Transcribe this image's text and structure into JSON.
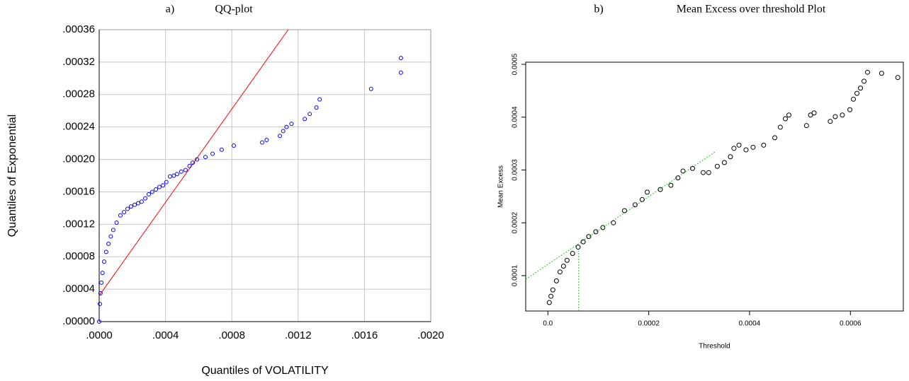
{
  "chart_data": [
    {
      "type": "scatter",
      "panel": "a)",
      "title": "QQ-plot",
      "xlabel": "Quantiles of VOLATILITY",
      "ylabel": "Quantiles of Exponential",
      "x": [
        0,
        4.3e-06,
        8e-06,
        1.3e-05,
        2e-05,
        3e-05,
        4.2e-05,
        5.6e-05,
        7e-05,
        8.5e-05,
        0.000105,
        0.000128,
        0.00015,
        0.000171,
        0.000192,
        0.000214,
        0.000235,
        0.000256,
        0.000278,
        0.000299,
        0.00032,
        0.000342,
        0.000363,
        0.000385,
        0.000405,
        0.000427,
        0.00045,
        0.00047,
        0.000495,
        0.000521,
        0.000545,
        0.000564,
        0.00059,
        0.000641,
        0.000684,
        0.000739,
        0.000812,
        0.000983,
        0.00101,
        0.00109,
        0.00111,
        0.00113,
        0.00116,
        0.00124,
        0.00127,
        0.00131,
        0.00133,
        0.00164,
        0.00182,
        0.00182
      ],
      "y": [
        0,
        2.18e-05,
        3.5e-05,
        4.8e-05,
        6e-05,
        7.4e-05,
        8.6e-05,
        9.6e-05,
        0.000105,
        0.000113,
        0.000122,
        0.000131,
        0.000135,
        0.000139,
        0.000142,
        0.000144,
        0.000146,
        0.000148,
        0.000152,
        0.000157,
        0.00016,
        0.000163,
        0.000166,
        0.000168,
        0.000172,
        0.000179,
        0.00018,
        0.000182,
        0.000185,
        0.000187,
        0.000192,
        0.000196,
        0.0002,
        0.000203,
        0.000207,
        0.000212,
        0.000217,
        0.000221,
        0.000224,
        0.000229,
        0.000235,
        0.00024,
        0.000244,
        0.00025,
        0.000256,
        0.000264,
        0.000274,
        0.000287,
        0.000307,
        0.000325
      ],
      "color": "#0000ff",
      "xlim": [
        0,
        0.002
      ],
      "xticks": [
        {
          "value": 0,
          "label": ".0000"
        },
        {
          "value": 0.0004,
          "label": ".0004"
        },
        {
          "value": 0.0008,
          "label": ".0008"
        },
        {
          "value": 0.0012,
          "label": ".0012"
        },
        {
          "value": 0.0016,
          "label": ".0016"
        },
        {
          "value": 0.002,
          "label": ".0020"
        }
      ],
      "ylim": [
        0,
        0.00036
      ],
      "yticks": [
        {
          "value": 0,
          "label": ".00000"
        },
        {
          "value": 4e-05,
          "label": ".00004"
        },
        {
          "value": 8e-05,
          "label": ".00008"
        },
        {
          "value": 0.00012,
          "label": ".00012"
        },
        {
          "value": 0.00016,
          "label": ".00016"
        },
        {
          "value": 0.0002,
          "label": ".00020"
        },
        {
          "value": 0.00024,
          "label": ".00024"
        },
        {
          "value": 0.00028,
          "label": ".00028"
        },
        {
          "value": 0.00032,
          "label": ".00032"
        },
        {
          "value": 0.00036,
          "label": ".00036"
        }
      ],
      "grid": true,
      "lines": [
        {
          "x": [
            0,
            0.00114
          ],
          "y": [
            3.2e-05,
            0.00036
          ],
          "color": "#ff0000",
          "dash": false
        }
      ]
    },
    {
      "type": "scatter",
      "panel": "b)",
      "title": "Mean Excess over threshold Plot",
      "xlabel": "Threshold",
      "ylabel": "Mean Excess",
      "x": [
        2.8e-06,
        6e-06,
        9.9e-06,
        1.7e-05,
        2.4e-05,
        3.1e-05,
        3.8e-05,
        4.9e-05,
        6e-05,
        7e-05,
        8.1e-05,
        9.5e-05,
        0.000109,
        0.00013,
        0.000152,
        0.000173,
        0.000187,
        0.000197,
        0.000223,
        0.000244,
        0.000258,
        0.000268,
        0.000287,
        0.000308,
        0.000319,
        0.000336,
        0.00035,
        0.000362,
        0.000369,
        0.000379,
        0.000393,
        0.000407,
        0.000428,
        0.00045,
        0.000461,
        0.000471,
        0.000478,
        0.000513,
        0.000521,
        0.000528,
        0.00056,
        0.00057,
        0.000584,
        0.000599,
        0.000606,
        0.000613,
        0.00062,
        0.000627,
        0.000634,
        0.000662,
        0.000694
      ],
      "y": [
        4.9e-05,
        6.1e-05,
        7.3e-05,
        9e-05,
        0.000107,
        0.000118,
        0.000129,
        0.000142,
        0.000154,
        0.000164,
        0.000174,
        0.000183,
        0.000191,
        0.0002,
        0.000223,
        0.000234,
        0.000244,
        0.000258,
        0.000263,
        0.000271,
        0.000285,
        0.000298,
        0.000303,
        0.000295,
        0.000295,
        0.000307,
        0.000314,
        0.000325,
        0.000341,
        0.000347,
        0.000338,
        0.000343,
        0.000347,
        0.000361,
        0.000381,
        0.000397,
        0.000404,
        0.000384,
        0.000404,
        0.000408,
        0.000392,
        0.000401,
        0.000404,
        0.000414,
        0.000434,
        0.000445,
        0.000455,
        0.000468,
        0.000485,
        0.000483,
        0.000475
      ],
      "color": "#000000",
      "xlim": [
        -4.4e-05,
        0.000705
      ],
      "xticks": [
        {
          "value": 0,
          "label": "0.0"
        },
        0.0002,
        0.0004,
        0.0006
      ],
      "ylim": [
        3.3e-05,
        0.000504
      ],
      "yticks": [
        0.0001,
        0.0002,
        0.0003,
        0.0004,
        0.0005
      ],
      "grid": false,
      "lines": [
        {
          "x": [
            -4.4e-05,
            0.000333
          ],
          "y": [
            9.3e-05,
            0.000335
          ],
          "color": "#22c422",
          "dash": true
        },
        {
          "x": [
            6.1e-05,
            6.1e-05
          ],
          "y": [
            3.3e-05,
            0.000147
          ],
          "color": "#22c422",
          "dash": true
        }
      ]
    }
  ]
}
